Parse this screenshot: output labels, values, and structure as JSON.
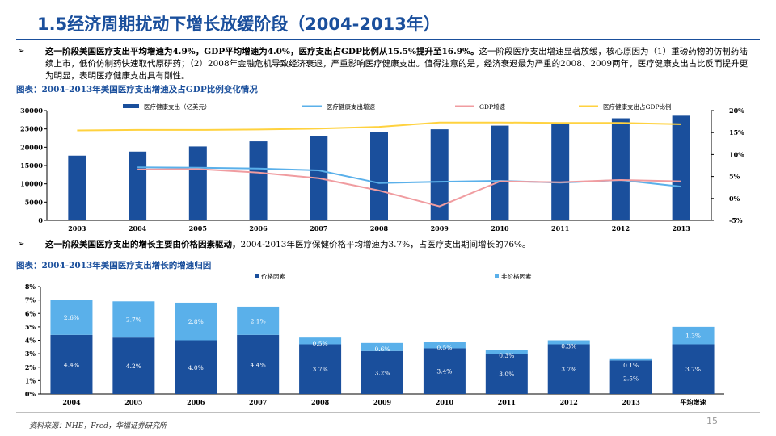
{
  "page": {
    "title": "1.5经济周期扰动下增长放缓阶段（2004-2013年）",
    "bullet_marker": "➢",
    "bullet1_bold": "这一阶段美国医疗支出平均增速为4.9%，GDP平均增速为4.0%，医疗支出占GDP比例从15.5%提升至16.9%。",
    "bullet1_text": "这一阶段医疗支出增速显著放缓，核心原因为（1）重磅药物的仿制药陆续上市，低价仿制药快速取代原研药；（2）2008年金融危机导致经济衰退，严重影响医疗健康支出。值得注意的是，经济衰退最为严重的2008、2009两年，医疗健康支出占比反而提升更为明显，表明医疗健康支出具有刚性。",
    "caption1": "图表：2004-2013年美国医疗支出增速及占GDP比例变化情况",
    "bullet2_bold": "这一阶段美国医疗支出的增长主要由价格因素驱动，",
    "bullet2_text": "2004-2013年医疗保健价格平均增速为3.7%，占医疗支出期间增长的76%。",
    "caption2": "图表：2004-2013年美国医疗支出增长的增速归因",
    "source": "资料来源：NHE，Fred，华福证券研究所",
    "page_number": "15"
  },
  "chart_data": [
    {
      "type": "bar+line",
      "title": "2004-2013年美国医疗支出增速及占GDP比例变化情况",
      "categories": [
        "2003",
        "2004",
        "2005",
        "2006",
        "2007",
        "2008",
        "2009",
        "2010",
        "2011",
        "2012",
        "2013"
      ],
      "bar_series": {
        "name": "医疗健康支出（亿美元）",
        "values": [
          17700,
          18800,
          20200,
          21600,
          23100,
          24100,
          24900,
          25900,
          26800,
          27900,
          28600
        ],
        "color": "#1a4f9c"
      },
      "line_series": [
        {
          "name": "医疗健康支出增速",
          "values": [
            null,
            7.1,
            7.0,
            6.8,
            6.4,
            3.5,
            3.8,
            4.0,
            3.6,
            4.2,
            2.7
          ],
          "color": "#5ab0ea"
        },
        {
          "name": "GDP增速",
          "values": [
            null,
            6.6,
            6.7,
            5.9,
            4.6,
            1.8,
            -1.8,
            3.9,
            3.7,
            4.2,
            3.9
          ],
          "color": "#f09ca0"
        },
        {
          "name": "医疗健康支出占GDP比例",
          "values": [
            15.5,
            15.6,
            15.6,
            15.7,
            15.9,
            16.3,
            17.3,
            17.3,
            17.2,
            17.2,
            16.9
          ],
          "color": "#ffd23f"
        }
      ],
      "y_left": {
        "min": 0,
        "max": 30000,
        "ticks": [
          "0",
          "5000",
          "10000",
          "15000",
          "20000",
          "25000",
          "30000"
        ]
      },
      "y_right": {
        "min": -5,
        "max": 20,
        "ticks": [
          "-5%",
          "0%",
          "5%",
          "10%",
          "15%",
          "20%"
        ]
      },
      "legend_position": "top"
    },
    {
      "type": "stacked-bar",
      "title": "2004-2013年美国医疗支出增长的增速归因",
      "categories": [
        "2004",
        "2005",
        "2006",
        "2007",
        "2008",
        "2009",
        "2010",
        "2011",
        "2012",
        "2013",
        "平均增速"
      ],
      "series": [
        {
          "name": "价格因素",
          "values": [
            4.4,
            4.2,
            4.0,
            4.4,
            3.7,
            3.2,
            3.4,
            3.0,
            3.7,
            2.5,
            3.7
          ],
          "labels": [
            "4.4%",
            "4.2%",
            "4.0%",
            "4.4%",
            "3.7%",
            "3.2%",
            "3.4%",
            "3.0%",
            "3.7%",
            "2.5%",
            "3.7%"
          ],
          "color": "#1a4f9c"
        },
        {
          "name": "非价格因素",
          "values": [
            2.6,
            2.7,
            2.8,
            2.1,
            0.5,
            0.6,
            0.5,
            0.3,
            0.3,
            0.1,
            1.3
          ],
          "labels": [
            "2.6%",
            "2.7%",
            "2.8%",
            "2.1%",
            "0.5%",
            "0.6%",
            "0.5%",
            "0.3%",
            "0.3%",
            "0.1%",
            "1.3%"
          ],
          "color": "#5ab0ea"
        }
      ],
      "y_axis": {
        "min": 0,
        "max": 8,
        "ticks": [
          "0%",
          "1%",
          "2%",
          "3%",
          "4%",
          "5%",
          "6%",
          "7%",
          "8%"
        ]
      },
      "legend_position": "top"
    }
  ]
}
